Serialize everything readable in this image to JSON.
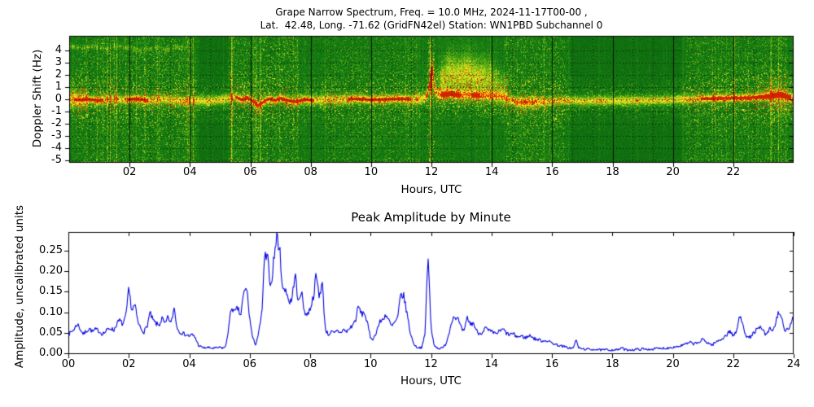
{
  "chart_data": [
    {
      "type": "heatmap",
      "title": "Grape Narrow Spectrum, Freq. = 10.0 MHz, 2024-11-17T00-00 ,",
      "subtitle": "Lat.  42.48, Long. -71.62 (GridFN42el) Station: WN1PBD Subchannel 0",
      "xlabel": "Hours, UTC",
      "ylabel": "Doppler Shift (Hz)",
      "xlim": [
        0,
        24
      ],
      "ylim": [
        -5.17,
        5.17
      ],
      "xtick_hours": [
        2,
        4,
        6,
        8,
        10,
        12,
        14,
        16,
        18,
        20,
        22
      ],
      "xtick_labels": [
        "02",
        "04",
        "06",
        "08",
        "10",
        "12",
        "14",
        "16",
        "18",
        "20",
        "22"
      ],
      "ytick_values": [
        4,
        3,
        2,
        1,
        0,
        -1,
        -2,
        -3,
        -4,
        -5
      ],
      "ytick_labels": [
        "4",
        "3",
        "2",
        "1",
        "0",
        "-1",
        "-2",
        "-3",
        "-4",
        "-5"
      ],
      "grid": {
        "horizontal_every_hz": 1,
        "vertical_every_min": 40,
        "solid_every_hours": 2,
        "style": "dotted"
      },
      "colormap_stops": [
        [
          0.0,
          [
            6,
            70,
            6
          ]
        ],
        [
          0.14,
          [
            16,
            112,
            16
          ]
        ],
        [
          0.3,
          [
            30,
            134,
            20
          ]
        ],
        [
          0.46,
          [
            72,
            162,
            20
          ]
        ],
        [
          0.6,
          [
            140,
            196,
            24
          ]
        ],
        [
          0.72,
          [
            204,
            226,
            28
          ]
        ],
        [
          0.82,
          [
            246,
            246,
            40
          ]
        ],
        [
          0.88,
          [
            255,
            208,
            28
          ]
        ],
        [
          0.93,
          [
            255,
            138,
            12
          ]
        ],
        [
          1.0,
          [
            208,
            36,
            0
          ]
        ]
      ],
      "background_level": 0.16,
      "quiet_background_level": 0.125,
      "band_amp": 0.6,
      "red_core_amp": 0.3,
      "doppler_trace": [
        [
          0,
          0.05
        ],
        [
          0.3,
          -0.05
        ],
        [
          0.6,
          0.0
        ],
        [
          1.0,
          -0.1
        ],
        [
          1.4,
          0.0
        ],
        [
          1.8,
          -0.05
        ],
        [
          2.2,
          0.05
        ],
        [
          2.6,
          -0.1
        ],
        [
          3.0,
          0.0
        ],
        [
          3.4,
          -0.05
        ],
        [
          3.8,
          -0.15
        ],
        [
          4.2,
          -0.1
        ],
        [
          4.6,
          -0.15
        ],
        [
          5.0,
          -0.05
        ],
        [
          5.3,
          0.05
        ],
        [
          5.5,
          0.2
        ],
        [
          5.7,
          -0.05
        ],
        [
          5.9,
          0.1
        ],
        [
          6.1,
          -0.2
        ],
        [
          6.25,
          -0.5
        ],
        [
          6.4,
          -0.25
        ],
        [
          6.6,
          0.05
        ],
        [
          6.8,
          -0.1
        ],
        [
          7.0,
          0.1
        ],
        [
          7.2,
          -0.1
        ],
        [
          7.5,
          -0.2
        ],
        [
          7.8,
          0.0
        ],
        [
          8.1,
          -0.1
        ],
        [
          8.5,
          0.0
        ],
        [
          9.0,
          -0.05
        ],
        [
          9.5,
          0.05
        ],
        [
          10.0,
          -0.05
        ],
        [
          10.5,
          0.0
        ],
        [
          11.0,
          0.05
        ],
        [
          11.4,
          -0.05
        ],
        [
          11.7,
          0.05
        ],
        [
          11.85,
          0.3
        ],
        [
          11.95,
          1.5
        ],
        [
          12.02,
          2.5
        ],
        [
          12.08,
          1.2
        ],
        [
          12.15,
          0.5
        ],
        [
          12.3,
          0.35
        ],
        [
          12.6,
          0.45
        ],
        [
          12.9,
          0.3
        ],
        [
          13.2,
          0.35
        ],
        [
          13.6,
          0.3
        ],
        [
          14.0,
          0.28
        ],
        [
          14.4,
          0.15
        ],
        [
          14.6,
          -0.05
        ],
        [
          14.9,
          -0.2
        ],
        [
          15.3,
          -0.15
        ],
        [
          15.8,
          -0.2
        ],
        [
          16.3,
          -0.1
        ],
        [
          17.0,
          -0.15
        ],
        [
          17.5,
          -0.1
        ],
        [
          18.0,
          -0.12
        ],
        [
          18.5,
          -0.1
        ],
        [
          19.0,
          -0.1
        ],
        [
          19.5,
          -0.08
        ],
        [
          20.0,
          -0.05
        ],
        [
          20.5,
          0.0
        ],
        [
          21.0,
          0.05
        ],
        [
          21.5,
          0.08
        ],
        [
          22.0,
          0.1
        ],
        [
          22.4,
          0.12
        ],
        [
          22.8,
          0.18
        ],
        [
          23.2,
          0.22
        ],
        [
          23.5,
          0.4
        ],
        [
          23.8,
          0.2
        ],
        [
          24,
          0.1
        ]
      ],
      "band_width_spans": [
        [
          0,
          0.6,
          0.5
        ],
        [
          11.8,
          12.1,
          0.35
        ],
        [
          12.1,
          14.5,
          0.32
        ],
        [
          14.5,
          24,
          0.26
        ]
      ],
      "band_width_default": 0.28,
      "red_core_segments": [
        [
          0.15,
          1.1
        ],
        [
          1.9,
          2.6
        ],
        [
          5.5,
          8.1
        ],
        [
          9.2,
          11.3
        ],
        [
          11.8,
          12.05
        ],
        [
          12.3,
          12.95
        ],
        [
          13.3,
          13.6
        ],
        [
          20.9,
          23.9
        ]
      ],
      "upper_trace": {
        "amp": 0.42,
        "points": [
          [
            0,
            4.35
          ],
          [
            0.4,
            4.2
          ],
          [
            0.8,
            4.35
          ],
          [
            1.2,
            4.1
          ],
          [
            1.6,
            4.4
          ],
          [
            2.0,
            4.15
          ],
          [
            2.4,
            3.95
          ],
          [
            2.8,
            4.2
          ],
          [
            3.2,
            4.05
          ],
          [
            3.6,
            4.25
          ],
          [
            4.2,
            4.1
          ]
        ]
      },
      "plumes": [
        [
          12.0,
          1.6,
          0.06,
          1.5,
          0.65
        ],
        [
          12.35,
          1.5,
          0.12,
          0.9,
          0.5
        ],
        [
          12.6,
          2.3,
          0.15,
          1.2,
          0.55
        ],
        [
          12.9,
          1.8,
          0.18,
          1.0,
          0.5
        ],
        [
          13.2,
          2.5,
          0.2,
          1.2,
          0.5
        ],
        [
          13.5,
          1.6,
          0.18,
          0.9,
          0.45
        ],
        [
          13.8,
          2.1,
          0.2,
          1.1,
          0.4
        ],
        [
          14.1,
          1.3,
          0.2,
          0.8,
          0.35
        ],
        [
          14.4,
          0.9,
          0.15,
          0.6,
          0.3
        ],
        [
          15.0,
          -0.5,
          0.25,
          0.45,
          0.3
        ],
        [
          15.4,
          -0.6,
          0.2,
          0.4,
          0.25
        ],
        [
          23.3,
          0.6,
          0.3,
          0.7,
          0.35
        ],
        [
          23.6,
          -0.3,
          0.25,
          0.8,
          0.3
        ]
      ],
      "fuzz_spans": [
        [
          0,
          0.6,
          0.55
        ],
        [
          12.1,
          14.6,
          0.5
        ],
        [
          22.4,
          24,
          0.5
        ]
      ],
      "fuzz_default": 0.3,
      "quiet_spans": [
        [
          4.3,
          5.25
        ],
        [
          16.6,
          20.3
        ]
      ],
      "streak_spans": [
        [
          0.2,
          4.2,
          1.0
        ],
        [
          5.3,
          7.6,
          1.1
        ],
        [
          8.5,
          11.5,
          0.85
        ],
        [
          11.85,
          12.1,
          1.4
        ],
        [
          14.4,
          16.4,
          1.0
        ],
        [
          20.4,
          23.8,
          0.95
        ]
      ],
      "streak_default": 0.5,
      "burst_hours": [
        5.38,
        6.32,
        11.97
      ],
      "seed": 12345
    },
    {
      "type": "line",
      "title": "Peak Amplitude by Minute",
      "xlabel": "Hours, UTC",
      "ylabel": "Amplitude, uncalibrated units",
      "xlim": [
        0,
        24
      ],
      "ylim": [
        0,
        0.2955
      ],
      "xtick_hours": [
        0,
        2,
        4,
        6,
        8,
        10,
        12,
        14,
        16,
        18,
        20,
        22,
        24
      ],
      "xtick_labels": [
        "00",
        "02",
        "04",
        "06",
        "08",
        "10",
        "12",
        "14",
        "16",
        "18",
        "20",
        "22",
        "24"
      ],
      "ytick_values": [
        0,
        0.05,
        0.1,
        0.15,
        0.2,
        0.25
      ],
      "ytick_labels": [
        "0.00",
        "0.05",
        "0.10",
        "0.15",
        "0.20",
        "0.25"
      ],
      "line_color": "#0000dd",
      "x_step_hours": 0.1,
      "values": [
        0.045,
        0.052,
        0.06,
        0.072,
        0.058,
        0.046,
        0.055,
        0.06,
        0.052,
        0.058,
        0.055,
        0.048,
        0.05,
        0.058,
        0.062,
        0.055,
        0.072,
        0.08,
        0.07,
        0.088,
        0.155,
        0.105,
        0.118,
        0.075,
        0.06,
        0.052,
        0.065,
        0.098,
        0.08,
        0.072,
        0.068,
        0.085,
        0.07,
        0.088,
        0.072,
        0.112,
        0.06,
        0.052,
        0.048,
        0.045,
        0.042,
        0.045,
        0.038,
        0.02,
        0.015,
        0.013,
        0.014,
        0.013,
        0.012,
        0.013,
        0.014,
        0.013,
        0.015,
        0.06,
        0.115,
        0.098,
        0.11,
        0.09,
        0.145,
        0.16,
        0.085,
        0.035,
        0.022,
        0.05,
        0.095,
        0.24,
        0.225,
        0.16,
        0.23,
        0.29,
        0.245,
        0.15,
        0.158,
        0.125,
        0.13,
        0.2,
        0.12,
        0.155,
        0.105,
        0.092,
        0.11,
        0.135,
        0.19,
        0.14,
        0.172,
        0.06,
        0.045,
        0.052,
        0.048,
        0.055,
        0.05,
        0.058,
        0.052,
        0.06,
        0.068,
        0.08,
        0.115,
        0.095,
        0.1,
        0.07,
        0.038,
        0.035,
        0.055,
        0.075,
        0.082,
        0.095,
        0.08,
        0.065,
        0.075,
        0.085,
        0.145,
        0.138,
        0.1,
        0.055,
        0.028,
        0.016,
        0.014,
        0.015,
        0.045,
        0.245,
        0.06,
        0.022,
        0.013,
        0.012,
        0.013,
        0.025,
        0.05,
        0.085,
        0.09,
        0.082,
        0.06,
        0.052,
        0.088,
        0.07,
        0.075,
        0.055,
        0.048,
        0.052,
        0.062,
        0.055,
        0.052,
        0.048,
        0.05,
        0.055,
        0.058,
        0.048,
        0.045,
        0.048,
        0.042,
        0.04,
        0.042,
        0.038,
        0.04,
        0.044,
        0.036,
        0.034,
        0.032,
        0.03,
        0.032,
        0.028,
        0.026,
        0.022,
        0.02,
        0.018,
        0.016,
        0.014,
        0.013,
        0.012,
        0.032,
        0.012,
        0.011,
        0.01,
        0.01,
        0.009,
        0.01,
        0.009,
        0.008,
        0.008,
        0.009,
        0.008,
        0.008,
        0.009,
        0.008,
        0.014,
        0.009,
        0.008,
        0.009,
        0.008,
        0.01,
        0.009,
        0.011,
        0.009,
        0.01,
        0.01,
        0.011,
        0.012,
        0.011,
        0.013,
        0.012,
        0.014,
        0.015,
        0.016,
        0.017,
        0.019,
        0.022,
        0.024,
        0.026,
        0.023,
        0.025,
        0.028,
        0.034,
        0.028,
        0.024,
        0.02,
        0.026,
        0.03,
        0.034,
        0.04,
        0.046,
        0.055,
        0.042,
        0.05,
        0.088,
        0.08,
        0.048,
        0.036,
        0.042,
        0.052,
        0.058,
        0.062,
        0.055,
        0.042,
        0.06,
        0.055,
        0.07,
        0.105,
        0.085,
        0.052,
        0.058,
        0.068,
        0.088
      ],
      "jitter": {
        "amp": 0.12,
        "base": 0.004,
        "seed": 7
      }
    }
  ]
}
